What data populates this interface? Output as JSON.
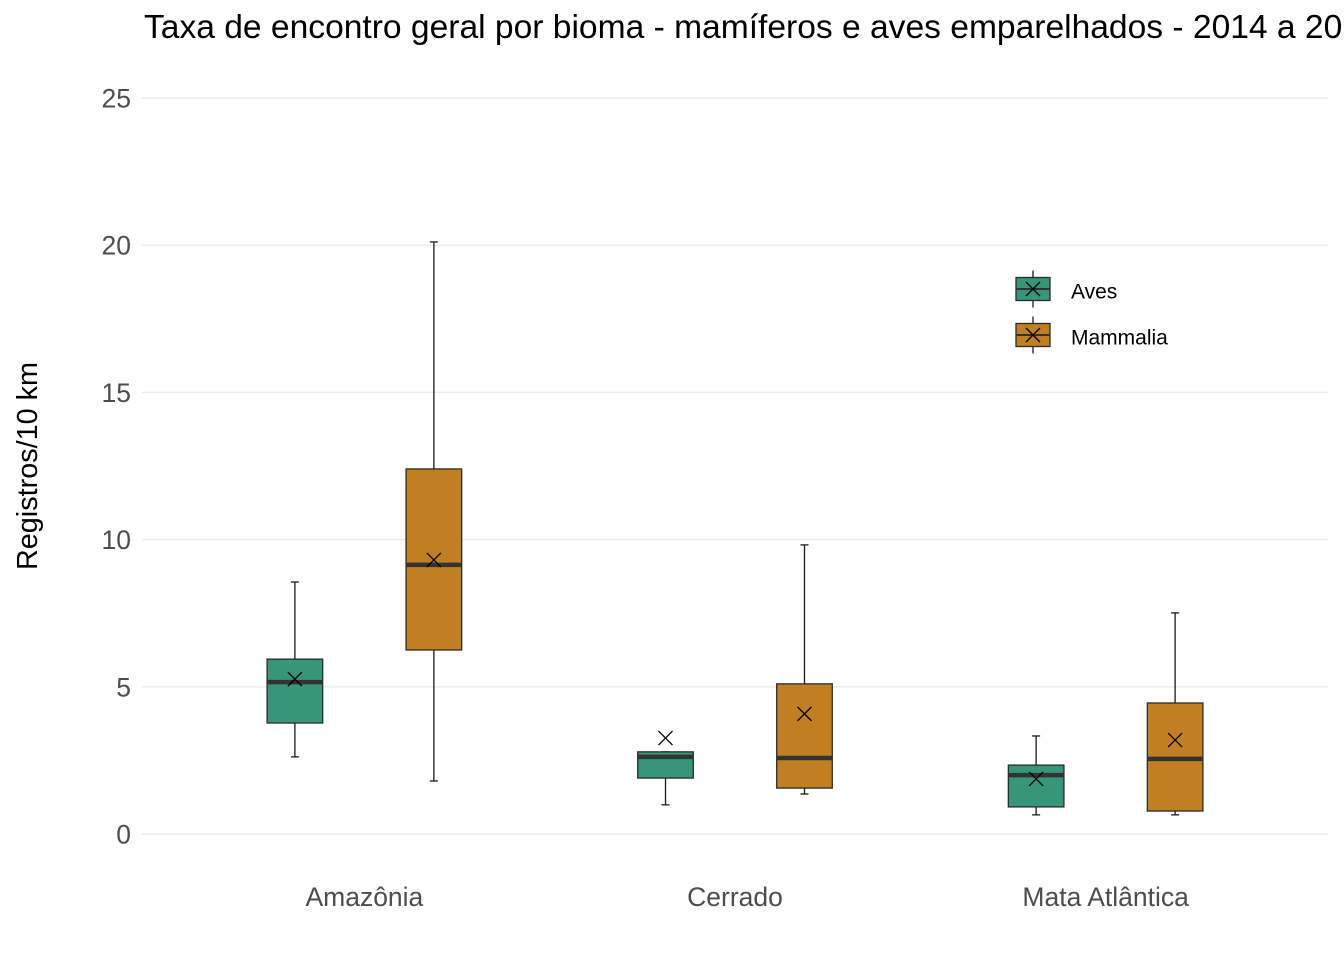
{
  "chart_data": {
    "type": "boxplot",
    "title": "Taxa de encontro geral por bioma - mamíferos e aves emparelhados - 2014 a 20",
    "ylabel": "Registros/10 km",
    "categories": [
      "Amazônia",
      "Cerrado",
      "Mata Atlântica"
    ],
    "ylim": [
      0,
      25
    ],
    "yticks": [
      0,
      5,
      10,
      15,
      20,
      25
    ],
    "grid": true,
    "legend": "top-right",
    "series": [
      {
        "name": "Aves",
        "color": "#35967A",
        "boxes": [
          {
            "whisker_low": 2.62,
            "q1": 3.77,
            "median": 5.16,
            "q3": 5.94,
            "whisker_high": 8.56,
            "mean": 5.26
          },
          {
            "whisker_low": 0.99,
            "q1": 1.9,
            "median": 2.62,
            "q3": 2.79,
            "whisker_high": 2.79,
            "mean": 3.26
          },
          {
            "whisker_low": 0.65,
            "q1": 0.92,
            "median": 2.0,
            "q3": 2.34,
            "whisker_high": 3.33,
            "mean": 1.87
          }
        ]
      },
      {
        "name": "Mammalia",
        "color": "#C07F22",
        "boxes": [
          {
            "whisker_low": 1.8,
            "q1": 6.25,
            "median": 9.14,
            "q3": 12.4,
            "whisker_high": 20.11,
            "mean": 9.31
          },
          {
            "whisker_low": 1.36,
            "q1": 1.56,
            "median": 2.58,
            "q3": 5.1,
            "whisker_high": 9.82,
            "mean": 4.08
          },
          {
            "whisker_low": 0.65,
            "q1": 0.78,
            "median": 2.55,
            "q3": 4.45,
            "whisker_high": 7.51,
            "mean": 3.19
          }
        ]
      }
    ]
  }
}
